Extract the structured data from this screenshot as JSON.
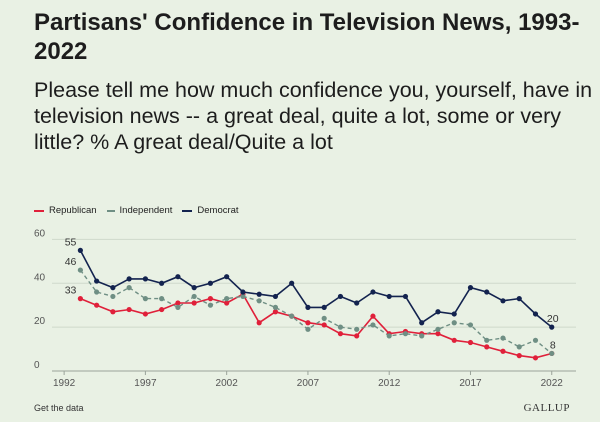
{
  "title": "Partisans' Confidence in Television News, 1993-2022",
  "subtitle": "Please tell me how much confidence you, yourself, have in television news -- a great deal, quite a lot, some or very little? % A great deal/Quite a lot",
  "legend": [
    {
      "name": "Republican",
      "color": "#e0203a",
      "style": "solid"
    },
    {
      "name": "Independent",
      "color": "#6f8f84",
      "style": "dashed"
    },
    {
      "name": "Democrat",
      "color": "#13234f",
      "style": "solid"
    }
  ],
  "footer": {
    "get_data": "Get the data",
    "brand": "GALLUP"
  },
  "chart_data": {
    "type": "line",
    "x_ticks": [
      1992,
      1997,
      2002,
      2007,
      2012,
      2017,
      2022
    ],
    "y_ticks": [
      0,
      20,
      40,
      60
    ],
    "xlim": [
      1991.5,
      2023
    ],
    "ylim": [
      0,
      62
    ],
    "grid": true,
    "series": [
      {
        "name": "Republican",
        "color": "#e0203a",
        "dashed": false,
        "x": [
          1993,
          1994,
          1995,
          1996,
          1997,
          1998,
          1999,
          2000,
          2001,
          2002,
          2003,
          2004,
          2005,
          2006,
          2007,
          2008,
          2009,
          2010,
          2011,
          2012,
          2013,
          2014,
          2015,
          2016,
          2017,
          2018,
          2019,
          2020,
          2021,
          2022
        ],
        "y": [
          33,
          30,
          27,
          28,
          26,
          28,
          31,
          31,
          33,
          31,
          35,
          22,
          27,
          25,
          22,
          21,
          17,
          16,
          25,
          17,
          18,
          17,
          17,
          14,
          13,
          11,
          9,
          7,
          6,
          8
        ]
      },
      {
        "name": "Independent",
        "color": "#6f8f84",
        "dashed": true,
        "x": [
          1993,
          1994,
          1995,
          1996,
          1997,
          1998,
          1999,
          2000,
          2001,
          2002,
          2003,
          2004,
          2005,
          2006,
          2007,
          2008,
          2009,
          2010,
          2011,
          2012,
          2013,
          2014,
          2015,
          2016,
          2017,
          2018,
          2019,
          2020,
          2021,
          2022
        ],
        "y": [
          46,
          36,
          34,
          38,
          33,
          33,
          29,
          34,
          30,
          33,
          34,
          32,
          29,
          25,
          19,
          24,
          20,
          19,
          21,
          16,
          17,
          16,
          19,
          22,
          21,
          14,
          15,
          11,
          14,
          8
        ]
      },
      {
        "name": "Democrat",
        "color": "#13234f",
        "dashed": false,
        "x": [
          1993,
          1994,
          1995,
          1996,
          1997,
          1998,
          1999,
          2000,
          2001,
          2002,
          2003,
          2004,
          2005,
          2006,
          2007,
          2008,
          2009,
          2010,
          2011,
          2012,
          2013,
          2014,
          2015,
          2016,
          2017,
          2018,
          2019,
          2020,
          2021,
          2022
        ],
        "y": [
          55,
          41,
          38,
          42,
          42,
          40,
          43,
          38,
          40,
          43,
          36,
          35,
          34,
          40,
          29,
          29,
          34,
          31,
          36,
          34,
          34,
          22,
          27,
          26,
          38,
          36,
          32,
          33,
          26,
          20
        ]
      }
    ],
    "annotations": [
      {
        "series": "Democrat",
        "x": 1993,
        "y": 55,
        "text": "55"
      },
      {
        "series": "Independent",
        "x": 1993,
        "y": 46,
        "text": "46"
      },
      {
        "series": "Republican",
        "x": 1993,
        "y": 33,
        "text": "33"
      },
      {
        "series": "Democrat",
        "x": 2022,
        "y": 20,
        "text": "20"
      },
      {
        "series": "Republican",
        "x": 2022,
        "y": 8,
        "text": "8"
      }
    ]
  }
}
